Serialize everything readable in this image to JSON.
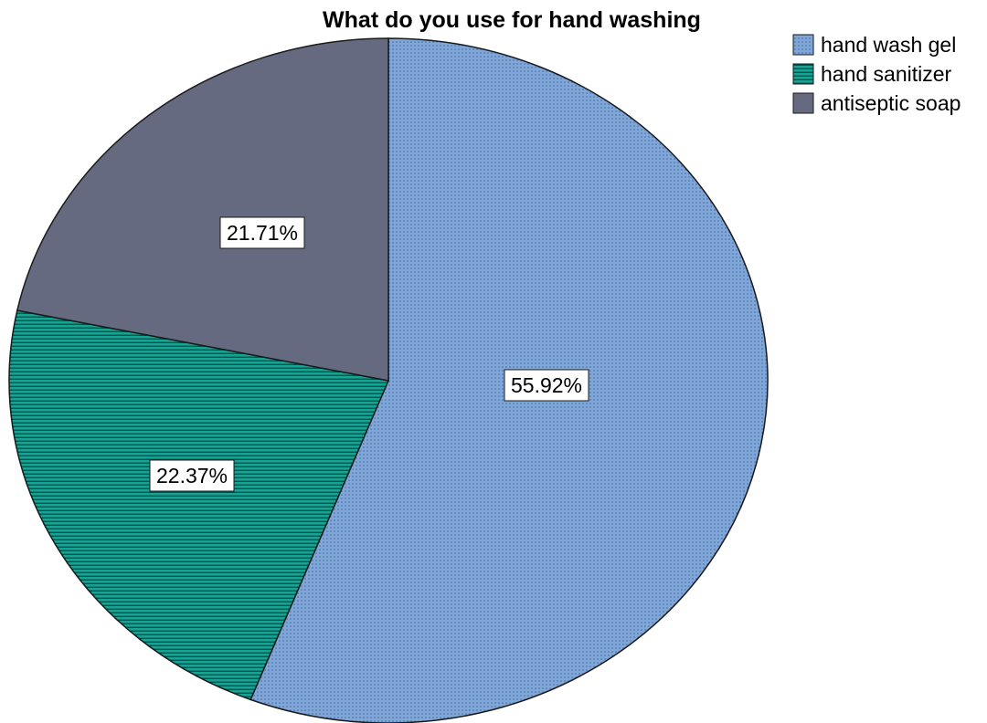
{
  "chart_data": {
    "type": "pie",
    "title": "What do you use for hand washing",
    "legend_position": "top-right",
    "slices": [
      {
        "name": "hand wash gel",
        "value": 55.92,
        "label": "55.92%",
        "color": "#7fa7d9",
        "pattern": "dots"
      },
      {
        "name": "hand sanitizer",
        "value": 22.37,
        "label": "22.37%",
        "color": "#128a7f",
        "pattern": "horizontal-lines"
      },
      {
        "name": "antiseptic soap",
        "value": 21.71,
        "label": "21.71%",
        "color": "#666a80",
        "pattern": "solid"
      }
    ]
  }
}
